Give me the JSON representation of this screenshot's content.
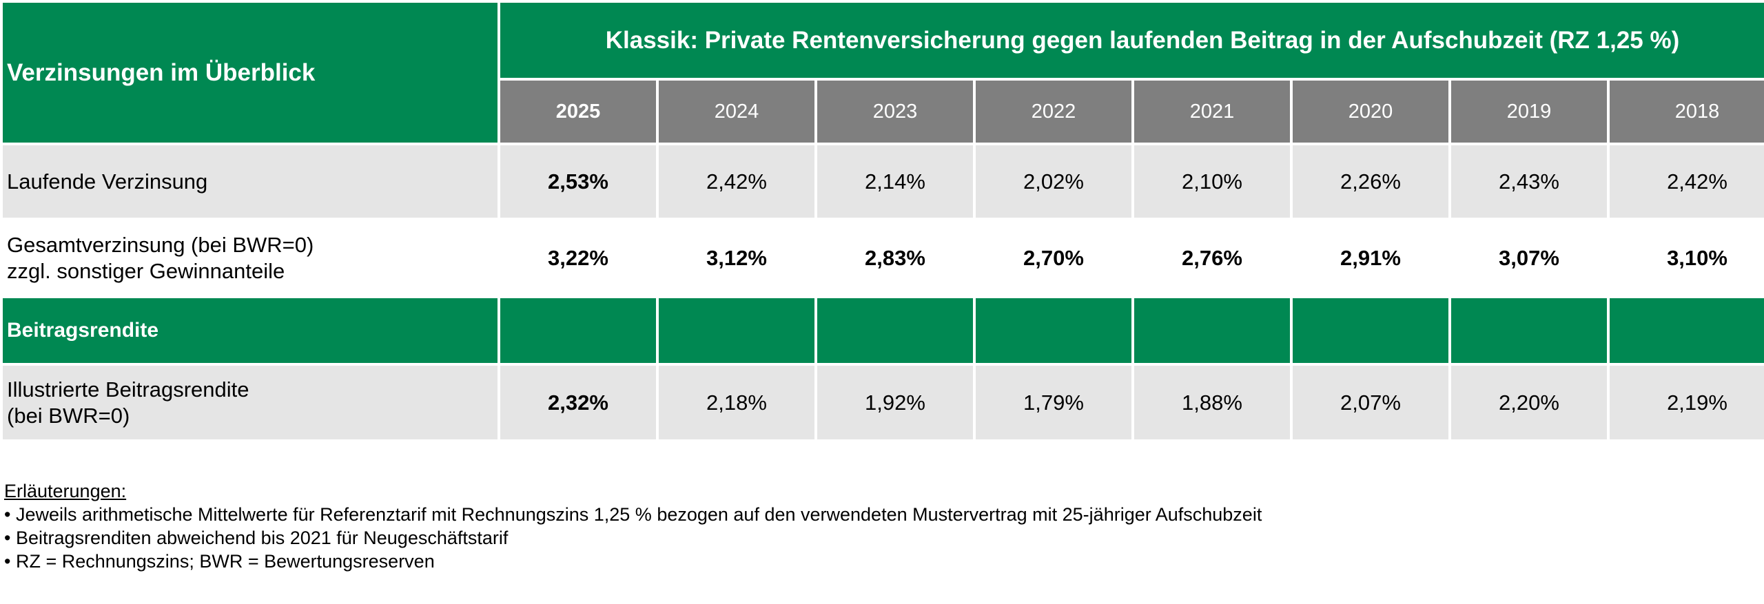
{
  "table": {
    "overview_label": "Verzinsungen im Überblick",
    "title": "Klassik: Private Rentenversicherung gegen laufenden Beitrag in der Aufschubzeit (RZ 1,25 %)",
    "years": [
      "2025",
      "2024",
      "2023",
      "2022",
      "2021",
      "2020",
      "2019",
      "2018"
    ],
    "rows": {
      "laufende": {
        "label": "Laufende Verzinsung",
        "values": [
          "2,53%",
          "2,42%",
          "2,14%",
          "2,02%",
          "2,10%",
          "2,26%",
          "2,43%",
          "2,42%"
        ]
      },
      "gesamt": {
        "label_line1": "Gesamtverzinsung (bei BWR=0)",
        "label_line2": "zzgl. sonstiger Gewinnanteile",
        "values": [
          "3,22%",
          "3,12%",
          "2,83%",
          "2,70%",
          "2,76%",
          "2,91%",
          "3,07%",
          "3,10%"
        ]
      },
      "section": {
        "label": "Beitragsrendite"
      },
      "illustriert": {
        "label_line1": "Illustrierte Beitragsrendite",
        "label_line2": "(bei BWR=0)",
        "values": [
          "2,32%",
          "2,18%",
          "1,92%",
          "1,79%",
          "1,88%",
          "2,07%",
          "2,20%",
          "2,19%"
        ]
      }
    }
  },
  "notes": {
    "heading": "Erläuterungen:",
    "items": [
      "• Jeweils arithmetische Mittelwerte für Referenztarif mit Rechnungszins 1,25 % bezogen auf den verwendeten Mustervertrag mit 25-jähriger Aufschubzeit",
      "• Beitragsrenditen abweichend bis 2021 für Neugeschäftstarif",
      "• RZ = Rechnungszins; BWR = Bewertungsreserven"
    ]
  },
  "colors": {
    "brand_green": "#008852",
    "header_grey": "#7f7f7f",
    "row_light": "#e5e5e5"
  }
}
